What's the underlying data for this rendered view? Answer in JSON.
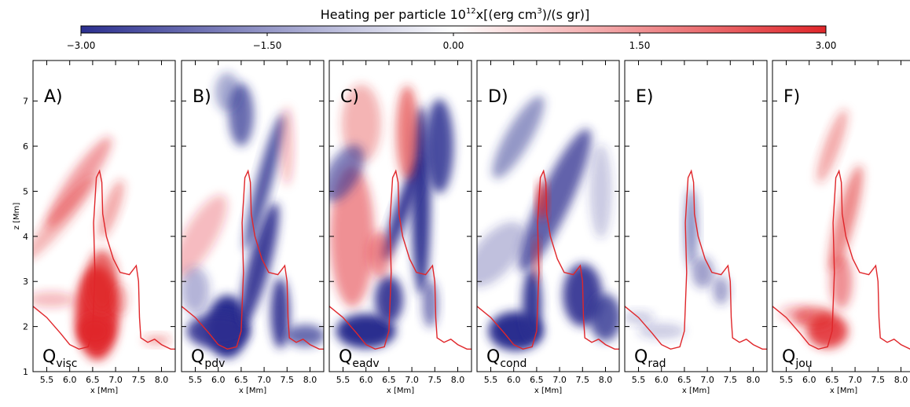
{
  "colorbar": {
    "title_main": "Heating per particle 10",
    "title_exp": "12",
    "title_rest": "x[(erg cm",
    "title_exp2": "3",
    "title_end": ")/(s gr)]",
    "min": -3.0,
    "max": 3.0,
    "ticks": [
      "-3.00",
      "-1.50",
      "0.00",
      "1.50",
      "3.00"
    ],
    "colors": {
      "low": "#2b2f8f",
      "mid": "#ffffff",
      "high": "#e0262a"
    }
  },
  "chart_data": {
    "type": "heatmap",
    "xlabel": "x [Mm]",
    "ylabel": "z [Mm]",
    "xlim": [
      5.2,
      8.3
    ],
    "ylim": [
      1.0,
      7.9
    ],
    "x_ticks": [
      "5.5",
      "6.0",
      "6.5",
      "7.0",
      "7.5",
      "8.0"
    ],
    "y_ticks": [
      "1",
      "2",
      "3",
      "4",
      "5",
      "6",
      "7"
    ],
    "contour_color": "#e0262a",
    "contour": [
      [
        5.2,
        2.45
      ],
      [
        5.5,
        2.2
      ],
      [
        5.8,
        1.85
      ],
      [
        6.0,
        1.6
      ],
      [
        6.2,
        1.5
      ],
      [
        6.4,
        1.55
      ],
      [
        6.5,
        1.9
      ],
      [
        6.55,
        3.2
      ],
      [
        6.52,
        4.3
      ],
      [
        6.58,
        5.3
      ],
      [
        6.65,
        5.45
      ],
      [
        6.7,
        5.2
      ],
      [
        6.72,
        4.5
      ],
      [
        6.8,
        4.0
      ],
      [
        6.95,
        3.5
      ],
      [
        7.1,
        3.2
      ],
      [
        7.3,
        3.15
      ],
      [
        7.45,
        3.35
      ],
      [
        7.5,
        3.0
      ],
      [
        7.52,
        2.2
      ],
      [
        7.55,
        1.75
      ],
      [
        7.7,
        1.65
      ],
      [
        7.85,
        1.72
      ],
      [
        8.0,
        1.6
      ],
      [
        8.2,
        1.5
      ],
      [
        8.3,
        1.5
      ]
    ],
    "panels": [
      {
        "label": "A)",
        "q_main": "Q",
        "q_sub": "visc"
      },
      {
        "label": "B)",
        "q_main": "Q",
        "q_sub": "pdv"
      },
      {
        "label": "C)",
        "q_main": "Q",
        "q_sub": "eadv"
      },
      {
        "label": "D)",
        "q_main": "Q",
        "q_sub": "cond"
      },
      {
        "label": "E)",
        "q_main": "Q",
        "q_sub": "rad"
      },
      {
        "label": "F)",
        "q_main": "Q",
        "q_sub": "jou"
      }
    ]
  }
}
